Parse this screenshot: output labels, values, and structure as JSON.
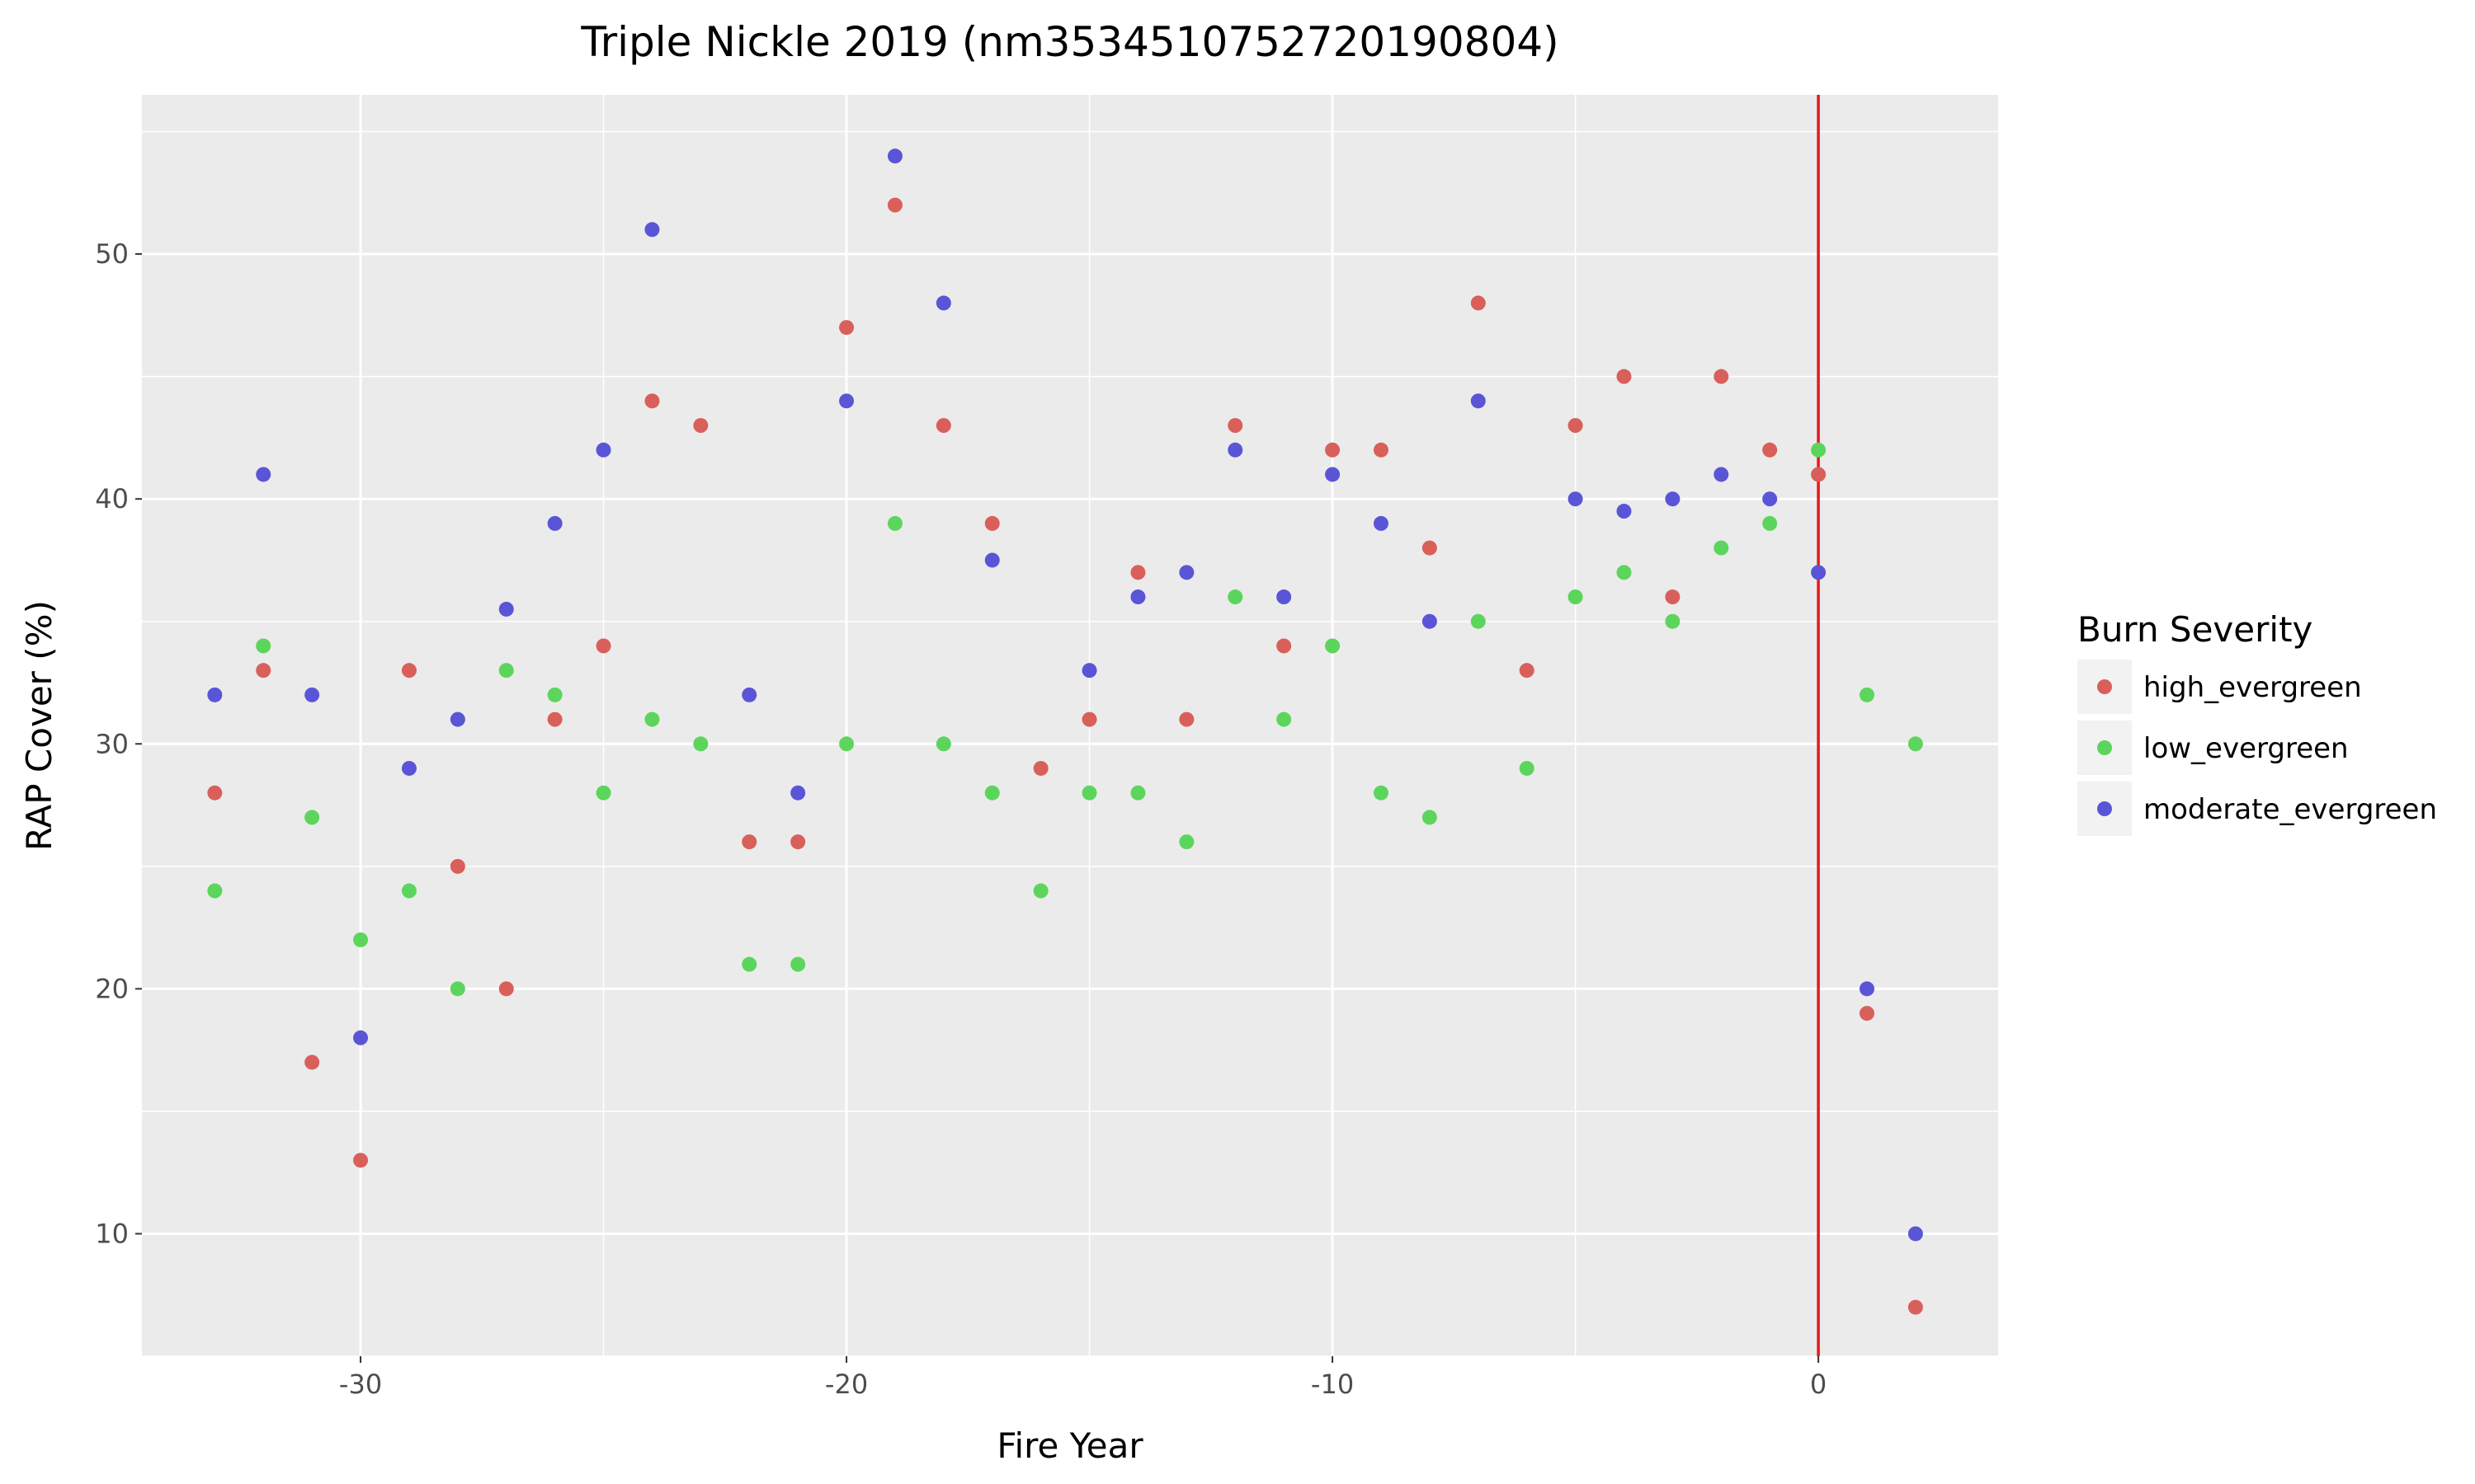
{
  "chart_data": {
    "type": "scatter",
    "title": "Triple Nickle 2019 (nm35345107527​20190804)",
    "xlabel": "Fire Year",
    "ylabel": "RAP Cover (%)",
    "xlim": [
      -34.5,
      3.7
    ],
    "ylim": [
      5,
      56.5
    ],
    "x_ticks": [
      -30,
      -20,
      -10,
      0
    ],
    "y_ticks": [
      10,
      20,
      30,
      40,
      50
    ],
    "grid": true,
    "legend_position": "right",
    "legend_title": "Burn Severity",
    "reference_line": {
      "x": 0,
      "color": "#e41a1c"
    },
    "series": [
      {
        "name": "high_evergreen",
        "color": "#d95f5a",
        "points": [
          [
            -33,
            28
          ],
          [
            -32,
            33
          ],
          [
            -31,
            17
          ],
          [
            -30,
            13
          ],
          [
            -29,
            33
          ],
          [
            -28,
            25
          ],
          [
            -27,
            20
          ],
          [
            -26,
            31
          ],
          [
            -25,
            34
          ],
          [
            -24,
            44
          ],
          [
            -23,
            43
          ],
          [
            -22,
            26
          ],
          [
            -21,
            26
          ],
          [
            -20,
            47
          ],
          [
            -19,
            52
          ],
          [
            -18,
            43
          ],
          [
            -17,
            39
          ],
          [
            -16,
            29
          ],
          [
            -15,
            31
          ],
          [
            -14,
            37
          ],
          [
            -13,
            31
          ],
          [
            -12,
            43
          ],
          [
            -11,
            34
          ],
          [
            -10,
            42
          ],
          [
            -9,
            42
          ],
          [
            -8,
            38
          ],
          [
            -7,
            48
          ],
          [
            -6,
            33
          ],
          [
            -5,
            43
          ],
          [
            -4,
            45
          ],
          [
            -3,
            36
          ],
          [
            -2,
            45
          ],
          [
            -1,
            42
          ],
          [
            0,
            41
          ],
          [
            1,
            19
          ],
          [
            2,
            7
          ]
        ]
      },
      {
        "name": "low_evergreen",
        "color": "#5cd55c",
        "points": [
          [
            -33,
            24
          ],
          [
            -32,
            34
          ],
          [
            -31,
            27
          ],
          [
            -30,
            22
          ],
          [
            -29,
            24
          ],
          [
            -28,
            20
          ],
          [
            -27,
            33
          ],
          [
            -26,
            32
          ],
          [
            -25,
            28
          ],
          [
            -24,
            31
          ],
          [
            -23,
            30
          ],
          [
            -22,
            21
          ],
          [
            -21,
            21
          ],
          [
            -20,
            30
          ],
          [
            -19,
            39
          ],
          [
            -18,
            30
          ],
          [
            -17,
            28
          ],
          [
            -16,
            24
          ],
          [
            -15,
            28
          ],
          [
            -14,
            28
          ],
          [
            -13,
            26
          ],
          [
            -12,
            36
          ],
          [
            -11,
            31
          ],
          [
            -10,
            34
          ],
          [
            -9,
            28
          ],
          [
            -8,
            27
          ],
          [
            -7,
            35
          ],
          [
            -6,
            29
          ],
          [
            -5,
            36
          ],
          [
            -4,
            37
          ],
          [
            -3,
            35
          ],
          [
            -2,
            38
          ],
          [
            -1,
            39
          ],
          [
            0,
            42
          ],
          [
            1,
            32
          ],
          [
            2,
            30
          ]
        ]
      },
      {
        "name": "moderate_evergreen",
        "color": "#5a55d6",
        "points": [
          [
            -33,
            32
          ],
          [
            -32,
            41
          ],
          [
            -31,
            32
          ],
          [
            -30,
            18
          ],
          [
            -29,
            29
          ],
          [
            -28,
            31
          ],
          [
            -27,
            35.5
          ],
          [
            -26,
            39
          ],
          [
            -25,
            42
          ],
          [
            -24,
            51
          ],
          [
            -22,
            32
          ],
          [
            -21,
            28
          ],
          [
            -20,
            44
          ],
          [
            -19,
            54
          ],
          [
            -18,
            48
          ],
          [
            -17,
            37.5
          ],
          [
            -15,
            33
          ],
          [
            -14,
            36
          ],
          [
            -13,
            37
          ],
          [
            -12,
            42
          ],
          [
            -11,
            36
          ],
          [
            -10,
            41
          ],
          [
            -9,
            39
          ],
          [
            -8,
            35
          ],
          [
            -7,
            44
          ],
          [
            -5,
            40
          ],
          [
            -4,
            39.5
          ],
          [
            -3,
            40
          ],
          [
            -2,
            41
          ],
          [
            -1,
            40
          ],
          [
            0,
            37
          ],
          [
            1,
            20
          ],
          [
            2,
            10
          ]
        ]
      }
    ]
  }
}
